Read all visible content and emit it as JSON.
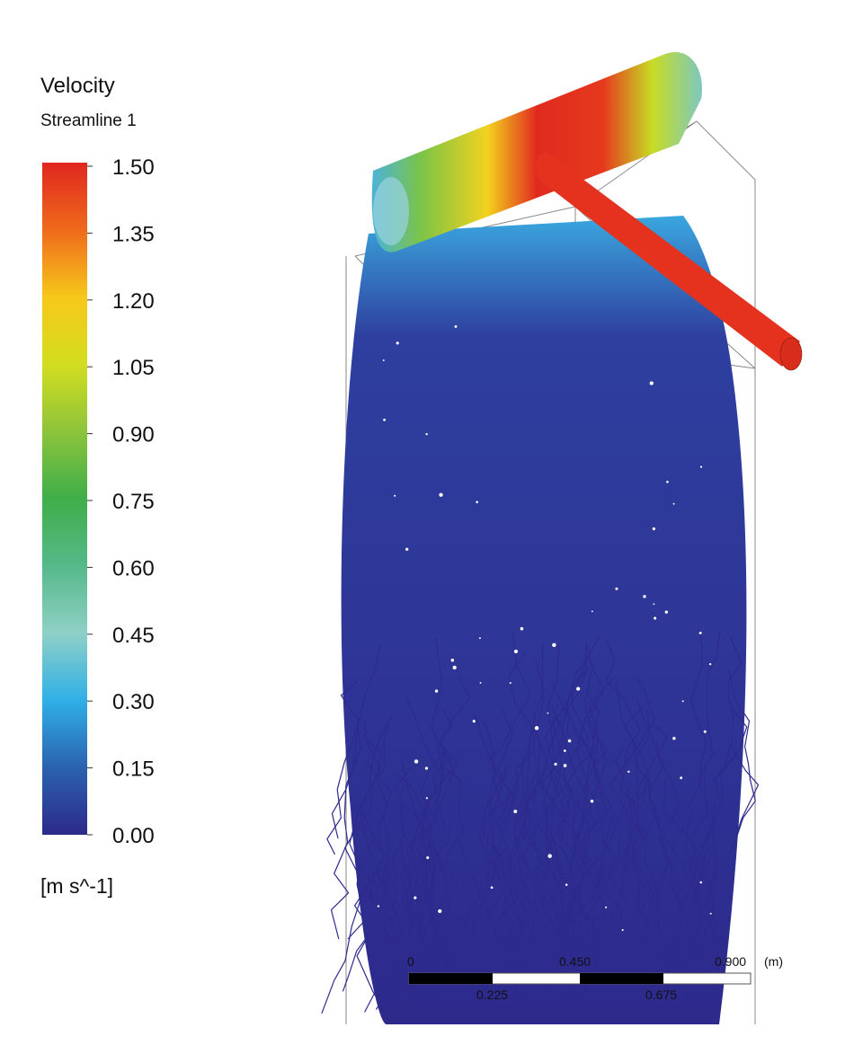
{
  "legend": {
    "title": "Velocity",
    "subtitle": "Streamline 1",
    "ticks": [
      "1.50",
      "1.35",
      "1.20",
      "1.05",
      "0.90",
      "0.75",
      "0.60",
      "0.45",
      "0.30",
      "0.15",
      "0.00"
    ],
    "unit": "[m s^-1]"
  },
  "scale_bar": {
    "top_labels": [
      "0",
      "0.450",
      "0.900"
    ],
    "unit": "(m)",
    "bottom_labels": [
      "0.225",
      "0.675"
    ]
  }
}
